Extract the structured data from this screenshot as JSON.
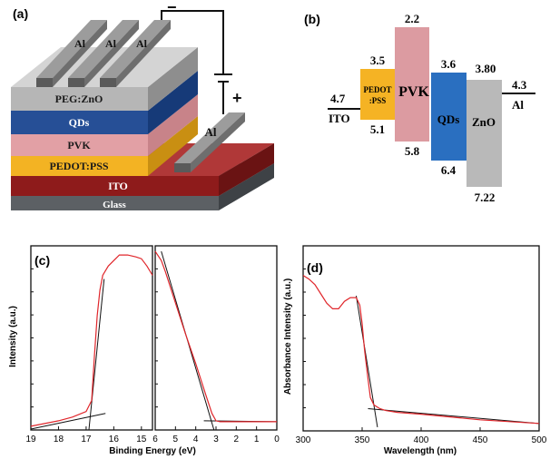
{
  "panel_a": {
    "label": "(a)",
    "layers": [
      "Glass",
      "ITO",
      "PEDOT:PSS",
      "PVK",
      "QDs",
      "PEG:ZnO"
    ],
    "electrodes": [
      "Al",
      "Al",
      "Al"
    ],
    "side_electrode": "Al",
    "minus": "−",
    "plus": "+",
    "colors": {
      "glass": "#5c6064",
      "ito": "#8e1b1b",
      "pedot": "#f3b323",
      "pvk": "#e2a0a5",
      "qds": "#264f96",
      "pegzno": "#b6b6b6",
      "al": "#6b6b6b"
    }
  },
  "panel_b": {
    "label": "(b)",
    "ito": {
      "name": "ITO",
      "level": "4.7"
    },
    "al": {
      "name": "Al",
      "level": "4.3"
    },
    "bands": [
      {
        "name_line1": "PEDOT",
        "name_line2": ":PSS",
        "top": "3.5",
        "bottom": "5.1",
        "color": "#f5b324"
      },
      {
        "name_line1": "PVK",
        "name_line2": "",
        "top": "2.2",
        "bottom": "5.8",
        "color": "#dc9ba1"
      },
      {
        "name_line1": "QDs",
        "name_line2": "",
        "top": "3.6",
        "bottom": "6.4",
        "color": "#2a6fc0"
      },
      {
        "name_line1": "ZnO",
        "name_line2": "",
        "top": "3.80",
        "bottom": "7.22",
        "color": "#b9b9b9"
      }
    ]
  },
  "panel_c": {
    "label": "(c)",
    "ylabel": "Intensity (a.u.)",
    "xlabel": "Binding Energy (eV)",
    "left_ticks": [
      "19",
      "18",
      "17",
      "16",
      "15"
    ],
    "right_ticks": [
      "6",
      "5",
      "4",
      "3",
      "2",
      "1",
      "0"
    ]
  },
  "panel_d": {
    "label": "(d)",
    "ylabel": "Absorbance Intensity (a.u.)",
    "xlabel": "Wavelength (nm)",
    "ticks": [
      "300",
      "350",
      "400",
      "450",
      "500"
    ]
  },
  "chart_data": [
    {
      "type": "line",
      "panel": "c-left",
      "xlim": [
        19,
        14.6
      ],
      "series": [
        {
          "x": [
            19,
            18,
            17.5,
            17.0,
            16.8,
            16.7,
            16.6,
            16.5,
            16.4,
            16.2,
            16.0,
            15.8,
            15.5,
            15.2,
            15.0,
            14.8,
            14.6
          ],
          "y": [
            0.02,
            0.05,
            0.07,
            0.1,
            0.16,
            0.4,
            0.62,
            0.76,
            0.84,
            0.89,
            0.92,
            0.95,
            0.95,
            0.94,
            0.93,
            0.89,
            0.84
          ]
        }
      ],
      "fit_lines": [
        {
          "x": [
            19,
            16.3
          ],
          "y": [
            0.005,
            0.09
          ]
        },
        {
          "x": [
            16.9,
            16.35
          ],
          "y": [
            0.0,
            0.82
          ]
        }
      ]
    },
    {
      "type": "line",
      "panel": "c-right",
      "xlim": [
        6,
        0
      ],
      "series": [
        {
          "x": [
            6.0,
            5.7,
            5.5,
            5.0,
            4.5,
            4.0,
            3.5,
            3.2,
            3.0,
            2.8,
            2.0,
            1.0,
            0.0
          ],
          "y": [
            0.97,
            0.92,
            0.86,
            0.69,
            0.52,
            0.36,
            0.19,
            0.09,
            0.05,
            0.045,
            0.045,
            0.045,
            0.045
          ]
        }
      ],
      "fit_lines": [
        {
          "x": [
            5.7,
            3.1
          ],
          "y": [
            0.97,
            0.0
          ]
        },
        {
          "x": [
            3.6,
            0
          ],
          "y": [
            0.05,
            0.045
          ]
        }
      ]
    },
    {
      "type": "line",
      "panel": "d",
      "xlim": [
        300,
        500
      ],
      "series": [
        {
          "x": [
            300,
            305,
            310,
            315,
            320,
            325,
            330,
            335,
            340,
            345,
            348,
            350,
            352,
            355,
            357,
            360,
            365,
            370,
            380,
            400,
            450,
            500
          ],
          "y": [
            0.84,
            0.82,
            0.79,
            0.74,
            0.69,
            0.66,
            0.66,
            0.7,
            0.72,
            0.72,
            0.68,
            0.58,
            0.44,
            0.28,
            0.18,
            0.14,
            0.12,
            0.11,
            0.1,
            0.09,
            0.06,
            0.04
          ]
        }
      ],
      "fit_lines": [
        {
          "x": [
            345,
            363
          ],
          "y": [
            0.73,
            0.02
          ]
        },
        {
          "x": [
            355,
            500
          ],
          "y": [
            0.12,
            0.04
          ]
        }
      ]
    }
  ]
}
